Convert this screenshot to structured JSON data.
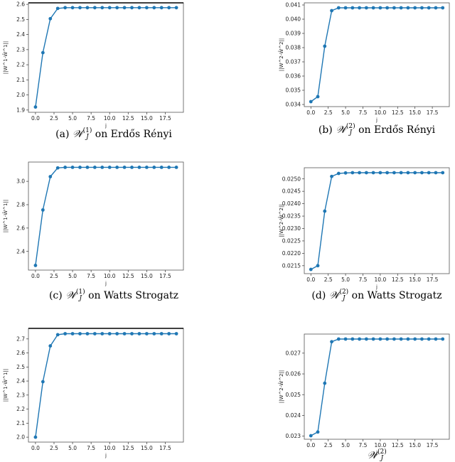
{
  "figure": {
    "captions": [
      {
        "prefix": "(a)",
        "super": "(1)",
        "suffix": "on Erdős Rényi"
      },
      {
        "prefix": "(b)",
        "super": "(2)",
        "suffix": "on Erdős Rényi"
      },
      {
        "prefix": "(c)",
        "super": "(1)",
        "suffix": "on Watts Strogatz"
      },
      {
        "prefix": "(d)",
        "super": "(2)",
        "suffix": "on Watts Strogatz"
      },
      {
        "prefix": "",
        "super": "",
        "suffix": ""
      },
      {
        "prefix": "",
        "super": "(2)",
        "suffix": ""
      }
    ],
    "caption_symbol": "𝒲",
    "caption_subscript": "J"
  },
  "colors": {
    "line": "#1f77b4",
    "frame": "#555555"
  },
  "chart_data": [
    {
      "type": "line",
      "xlabel": "j",
      "ylabel": "||W^1-Ŵ^1||",
      "x": [
        0,
        1,
        2,
        3,
        4,
        5,
        6,
        7,
        8,
        9,
        10,
        11,
        12,
        13,
        14,
        15,
        16,
        17,
        18,
        19
      ],
      "y": [
        1.92,
        2.28,
        2.505,
        2.573,
        2.578,
        2.578,
        2.578,
        2.578,
        2.578,
        2.578,
        2.578,
        2.578,
        2.578,
        2.578,
        2.578,
        2.578,
        2.578,
        2.578,
        2.578,
        2.578
      ],
      "xticks": [
        "0.0",
        "2.5",
        "5.0",
        "7.5",
        "10.0",
        "12.5",
        "15.0",
        "17.5"
      ],
      "xtick_values": [
        0,
        2.5,
        5,
        7.5,
        10,
        12.5,
        15,
        17.5
      ],
      "yticks": [
        "1.9",
        "2.0",
        "2.1",
        "2.2",
        "2.3",
        "2.4",
        "2.5",
        "2.6"
      ],
      "ytick_values": [
        1.9,
        2.0,
        2.1,
        2.2,
        2.3,
        2.4,
        2.5,
        2.6
      ],
      "xlim": [
        -0.95,
        19.95
      ],
      "ylim": [
        1.885,
        2.61
      ]
    },
    {
      "type": "line",
      "xlabel": "j",
      "ylabel": "||W^2-Ŵ^2||",
      "x": [
        0,
        1,
        2,
        3,
        4,
        5,
        6,
        7,
        8,
        9,
        10,
        11,
        12,
        13,
        14,
        15,
        16,
        17,
        18,
        19
      ],
      "y": [
        0.0342,
        0.03455,
        0.0381,
        0.0406,
        0.0408,
        0.0408,
        0.0408,
        0.0408,
        0.0408,
        0.0408,
        0.0408,
        0.0408,
        0.0408,
        0.0408,
        0.0408,
        0.0408,
        0.0408,
        0.0408,
        0.0408,
        0.0408
      ],
      "xticks": [
        "0.0",
        "2.5",
        "5.0",
        "7.5",
        "10.0",
        "12.5",
        "15.0",
        "17.5"
      ],
      "xtick_values": [
        0,
        2.5,
        5,
        7.5,
        10,
        12.5,
        15,
        17.5
      ],
      "yticks": [
        "0.034",
        "0.035",
        "0.036",
        "0.037",
        "0.038",
        "0.039",
        "0.040",
        "0.041"
      ],
      "ytick_values": [
        0.034,
        0.035,
        0.036,
        0.037,
        0.038,
        0.039,
        0.04,
        0.041
      ],
      "xlim": [
        -0.95,
        19.95
      ],
      "ylim": [
        0.03385,
        0.04115
      ]
    },
    {
      "type": "line",
      "xlabel": "j",
      "ylabel": "||W^1-Ŵ^1||",
      "x": [
        0,
        1,
        2,
        3,
        4,
        5,
        6,
        7,
        8,
        9,
        10,
        11,
        12,
        13,
        14,
        15,
        16,
        17,
        18,
        19
      ],
      "y": [
        2.28,
        2.755,
        3.04,
        3.115,
        3.12,
        3.12,
        3.12,
        3.12,
        3.12,
        3.12,
        3.12,
        3.12,
        3.12,
        3.12,
        3.12,
        3.12,
        3.12,
        3.12,
        3.12,
        3.12
      ],
      "xticks": [
        "0.0",
        "2.5",
        "5.0",
        "7.5",
        "10.0",
        "12.5",
        "15.0",
        "17.5"
      ],
      "xtick_values": [
        0,
        2.5,
        5,
        7.5,
        10,
        12.5,
        15,
        17.5
      ],
      "yticks": [
        "2.4",
        "2.6",
        "2.8",
        "3.0"
      ],
      "ytick_values": [
        2.4,
        2.6,
        2.8,
        3.0
      ],
      "xlim": [
        -0.95,
        19.95
      ],
      "ylim": [
        2.24,
        3.165
      ]
    },
    {
      "type": "line",
      "xlabel": "j",
      "ylabel": "||W^2-Ŵ^2||",
      "x": [
        0,
        1,
        2,
        3,
        4,
        5,
        6,
        7,
        8,
        9,
        10,
        11,
        12,
        13,
        14,
        15,
        16,
        17,
        18,
        19
      ],
      "y": [
        0.02135,
        0.0215,
        0.0237,
        0.0251,
        0.02522,
        0.02524,
        0.02525,
        0.02525,
        0.02525,
        0.02525,
        0.02525,
        0.02525,
        0.02525,
        0.02525,
        0.02525,
        0.02525,
        0.02525,
        0.02525,
        0.02525,
        0.02525
      ],
      "xticks": [
        "0.0",
        "2.5",
        "5.0",
        "7.5",
        "10.0",
        "12.5",
        "15.0",
        "17.5"
      ],
      "xtick_values": [
        0,
        2.5,
        5,
        7.5,
        10,
        12.5,
        15,
        17.5
      ],
      "yticks": [
        "0.0215",
        "0.0220",
        "0.0225",
        "0.0230",
        "0.0235",
        "0.0240",
        "0.0245",
        "0.0250"
      ],
      "ytick_values": [
        0.0215,
        0.022,
        0.0225,
        0.023,
        0.0235,
        0.024,
        0.0245,
        0.025
      ],
      "xlim": [
        -0.95,
        19.95
      ],
      "ylim": [
        0.02118,
        0.02545
      ]
    },
    {
      "type": "line",
      "xlabel": "j",
      "ylabel": "||W^1-Ŵ^1||",
      "x": [
        0,
        1,
        2,
        3,
        4,
        5,
        6,
        7,
        8,
        9,
        10,
        11,
        12,
        13,
        14,
        15,
        16,
        17,
        18,
        19
      ],
      "y": [
        2.0,
        2.395,
        2.65,
        2.73,
        2.737,
        2.737,
        2.737,
        2.737,
        2.737,
        2.737,
        2.737,
        2.737,
        2.737,
        2.737,
        2.737,
        2.737,
        2.737,
        2.737,
        2.737,
        2.737
      ],
      "xticks": [
        "0.0",
        "2.5",
        "5.0",
        "7.5",
        "10.0",
        "12.5",
        "15.0",
        "17.5"
      ],
      "xtick_values": [
        0,
        2.5,
        5,
        7.5,
        10,
        12.5,
        15,
        17.5
      ],
      "yticks": [
        "2.0",
        "2.1",
        "2.2",
        "2.3",
        "2.4",
        "2.5",
        "2.6",
        "2.7"
      ],
      "ytick_values": [
        2.0,
        2.1,
        2.2,
        2.3,
        2.4,
        2.5,
        2.6,
        2.7
      ],
      "xlim": [
        -0.95,
        19.95
      ],
      "ylim": [
        1.965,
        2.775
      ]
    },
    {
      "type": "line",
      "xlabel": "j",
      "ylabel": "||W^2-Ŵ^2||",
      "x": [
        0,
        1,
        2,
        3,
        4,
        5,
        6,
        7,
        8,
        9,
        10,
        11,
        12,
        13,
        14,
        15,
        16,
        17,
        18,
        19
      ],
      "y": [
        0.02302,
        0.0232,
        0.02555,
        0.02755,
        0.02768,
        0.02768,
        0.02768,
        0.02768,
        0.02768,
        0.02768,
        0.02768,
        0.02768,
        0.02768,
        0.02768,
        0.02768,
        0.02768,
        0.02768,
        0.02768,
        0.02768,
        0.02768
      ],
      "xticks": [
        "0.0",
        "2.5",
        "5.0",
        "7.5",
        "10.0",
        "12.5",
        "15.0",
        "17.5"
      ],
      "xtick_values": [
        0,
        2.5,
        5,
        7.5,
        10,
        12.5,
        15,
        17.5
      ],
      "yticks": [
        "0.023",
        "0.024",
        "0.025",
        "0.026",
        "0.027"
      ],
      "ytick_values": [
        0.023,
        0.024,
        0.025,
        0.026,
        0.027
      ],
      "xlim": [
        -0.95,
        19.95
      ],
      "ylim": [
        0.02285,
        0.02792
      ]
    }
  ]
}
